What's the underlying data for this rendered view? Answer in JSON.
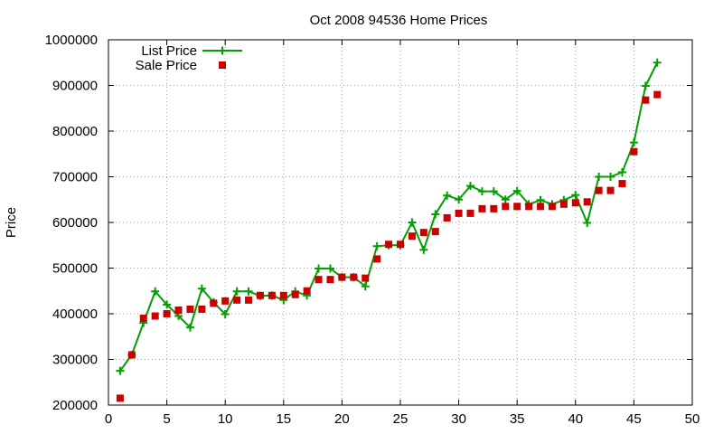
{
  "chart_data": {
    "type": "line",
    "title": "Oct 2008 94536 Home Prices",
    "xlabel": "",
    "ylabel": "Price",
    "xlim": [
      0,
      50
    ],
    "ylim": [
      200000,
      1000000
    ],
    "x_ticks": [
      "0",
      "5",
      "10",
      "15",
      "20",
      "25",
      "30",
      "35",
      "40",
      "45",
      "50"
    ],
    "y_ticks": [
      "200000",
      "300000",
      "400000",
      "500000",
      "600000",
      "700000",
      "800000",
      "900000",
      "1000000"
    ],
    "grid": true,
    "legend_position": "top-left",
    "series": [
      {
        "name": "List Price",
        "style": "line+cross",
        "color": "#00a000",
        "points": [
          [
            1,
            275000
          ],
          [
            2,
            310000
          ],
          [
            3,
            380000
          ],
          [
            4,
            449000
          ],
          [
            5,
            420000
          ],
          [
            6,
            395000
          ],
          [
            7,
            370000
          ],
          [
            8,
            455000
          ],
          [
            9,
            425000
          ],
          [
            10,
            399000
          ],
          [
            11,
            449000
          ],
          [
            12,
            449000
          ],
          [
            13,
            439000
          ],
          [
            14,
            440000
          ],
          [
            15,
            430000
          ],
          [
            16,
            449000
          ],
          [
            17,
            440000
          ],
          [
            18,
            499000
          ],
          [
            19,
            499000
          ],
          [
            20,
            480000
          ],
          [
            21,
            480000
          ],
          [
            22,
            460000
          ],
          [
            23,
            548000
          ],
          [
            24,
            550000
          ],
          [
            25,
            550000
          ],
          [
            26,
            600000
          ],
          [
            27,
            540000
          ],
          [
            28,
            618000
          ],
          [
            29,
            659000
          ],
          [
            30,
            650000
          ],
          [
            31,
            680000
          ],
          [
            32,
            668000
          ],
          [
            33,
            668000
          ],
          [
            34,
            650000
          ],
          [
            35,
            669000
          ],
          [
            36,
            640000
          ],
          [
            37,
            649000
          ],
          [
            38,
            640000
          ],
          [
            39,
            649000
          ],
          [
            40,
            660000
          ],
          [
            41,
            599000
          ],
          [
            42,
            700000
          ],
          [
            43,
            700000
          ],
          [
            44,
            710000
          ],
          [
            45,
            775000
          ],
          [
            46,
            899000
          ],
          [
            47,
            950000
          ]
        ]
      },
      {
        "name": "Sale Price",
        "style": "square",
        "color": "#cc0000",
        "points": [
          [
            1,
            215000
          ],
          [
            2,
            310000
          ],
          [
            3,
            390000
          ],
          [
            4,
            395000
          ],
          [
            5,
            400000
          ],
          [
            6,
            408000
          ],
          [
            7,
            410000
          ],
          [
            8,
            410000
          ],
          [
            9,
            423000
          ],
          [
            10,
            428000
          ],
          [
            11,
            430000
          ],
          [
            12,
            430000
          ],
          [
            13,
            440000
          ],
          [
            14,
            440000
          ],
          [
            15,
            440000
          ],
          [
            16,
            442000
          ],
          [
            17,
            450000
          ],
          [
            18,
            475000
          ],
          [
            19,
            475000
          ],
          [
            20,
            480000
          ],
          [
            21,
            480000
          ],
          [
            22,
            478000
          ],
          [
            23,
            520000
          ],
          [
            24,
            552000
          ],
          [
            25,
            552000
          ],
          [
            26,
            570000
          ],
          [
            27,
            578000
          ],
          [
            28,
            580000
          ],
          [
            29,
            610000
          ],
          [
            30,
            620000
          ],
          [
            31,
            620000
          ],
          [
            32,
            630000
          ],
          [
            33,
            630000
          ],
          [
            34,
            635000
          ],
          [
            35,
            635000
          ],
          [
            36,
            635000
          ],
          [
            37,
            635000
          ],
          [
            38,
            635000
          ],
          [
            39,
            640000
          ],
          [
            40,
            643000
          ],
          [
            41,
            645000
          ],
          [
            42,
            670000
          ],
          [
            43,
            670000
          ],
          [
            44,
            685000
          ],
          [
            45,
            755000
          ],
          [
            46,
            868000
          ],
          [
            47,
            880000
          ]
        ]
      }
    ]
  }
}
